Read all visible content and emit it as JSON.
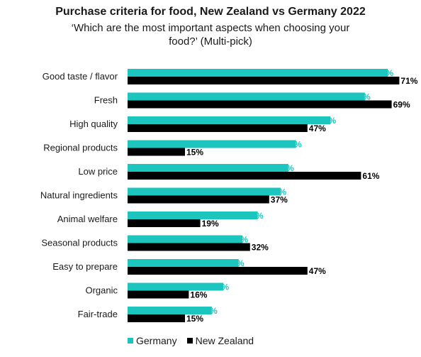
{
  "chart_data": {
    "type": "bar",
    "orientation": "horizontal",
    "title": "Purchase criteria for food, New Zealand vs Germany 2022",
    "subtitle_line1": "‘Which are the most important aspects when choosing your",
    "subtitle_line2": "food?’ (Multi-pick)",
    "categories": [
      "Good taste / flavor",
      "Fresh",
      "High quality",
      "Regional products",
      "Low price",
      "Natural ingredients",
      "Animal welfare",
      "Seasonal products",
      "Easy to prepare",
      "Organic",
      "Fair-trade"
    ],
    "series": [
      {
        "name": "Germany",
        "color": "#1cc6be",
        "values": [
          68,
          62,
          53,
          44,
          42,
          40,
          34,
          30,
          29,
          25,
          22
        ]
      },
      {
        "name": "New Zealand",
        "color": "#000000",
        "values": [
          71,
          69,
          47,
          15,
          61,
          37,
          19,
          32,
          47,
          16,
          15
        ]
      }
    ],
    "value_suffix": "%",
    "xlim": [
      0,
      100
    ],
    "legend_position": "bottom"
  }
}
